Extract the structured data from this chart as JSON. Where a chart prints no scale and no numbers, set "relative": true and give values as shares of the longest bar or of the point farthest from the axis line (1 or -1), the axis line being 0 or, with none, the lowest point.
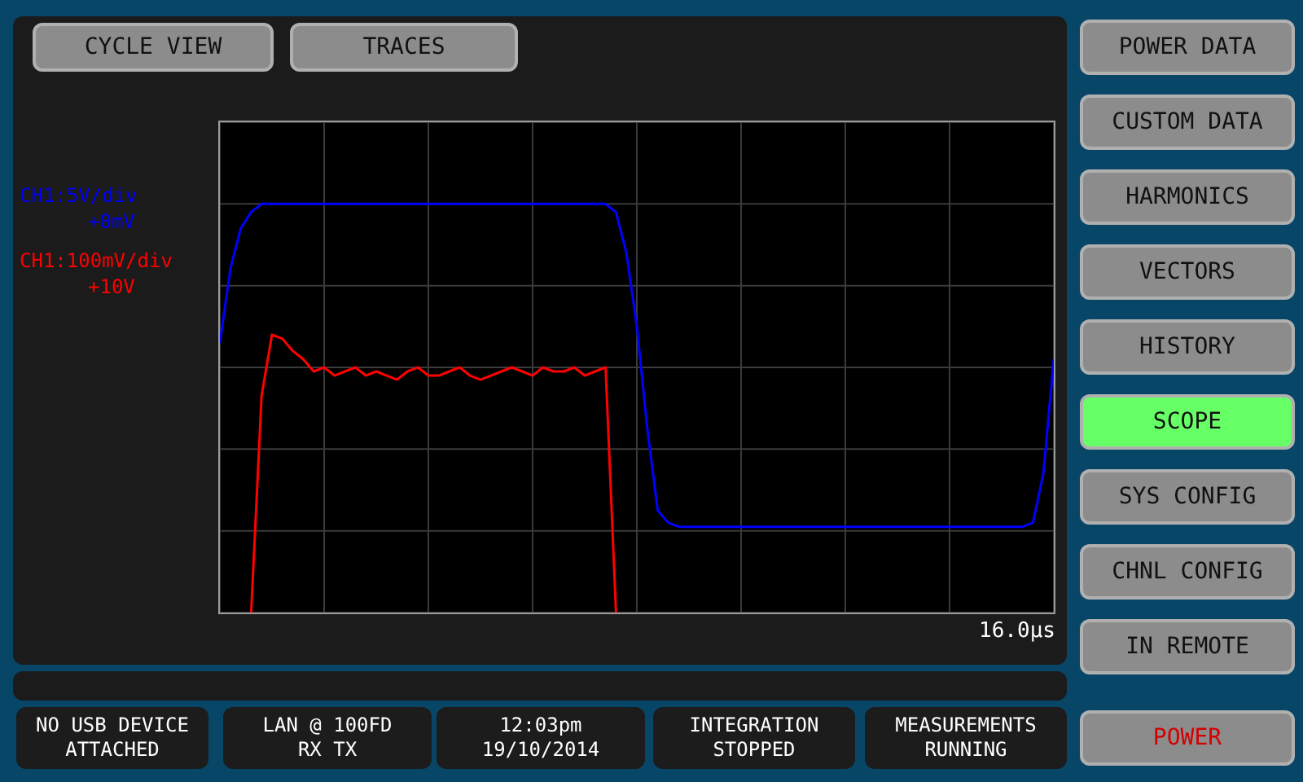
{
  "chart_data": {
    "type": "line",
    "relative": true,
    "grid": true,
    "marker": "none",
    "line_style": "solid",
    "categories": [
      null,
      null,
      null,
      null,
      null,
      null,
      null,
      null,
      null,
      null,
      null,
      null,
      null,
      null,
      null,
      null,
      null,
      null,
      null,
      null,
      null,
      null,
      null,
      null,
      null,
      null,
      null,
      null,
      null,
      null,
      null,
      null,
      null,
      null,
      null,
      null,
      null,
      null,
      null,
      null,
      null,
      null,
      null,
      null,
      null,
      null,
      null,
      null,
      null,
      null,
      null,
      null,
      null,
      null,
      null,
      null,
      null,
      null,
      null,
      null,
      null,
      null,
      null,
      null,
      null,
      null,
      null,
      null,
      null,
      null,
      null,
      null,
      null,
      null,
      null,
      null,
      null,
      null,
      null,
      null,
      null
    ],
    "series": [
      {
        "name": "CH1:5V/div +0mV",
        "color": "#0000ff",
        "values": [
          0.66,
          0.84,
          0.94,
          0.98,
          1,
          1,
          1,
          1,
          1,
          1,
          1,
          1,
          1,
          1,
          1,
          1,
          1,
          1,
          1,
          1,
          1,
          1,
          1,
          1,
          1,
          1,
          1,
          1,
          1,
          1,
          1,
          1,
          1,
          1,
          1,
          1,
          1,
          1,
          0.98,
          0.88,
          0.7,
          0.45,
          0.25,
          0.22,
          0.21,
          0.21,
          0.21,
          0.21,
          0.21,
          0.21,
          0.21,
          0.21,
          0.21,
          0.21,
          0.21,
          0.21,
          0.21,
          0.21,
          0.21,
          0.21,
          0.21,
          0.21,
          0.21,
          0.21,
          0.21,
          0.21,
          0.21,
          0.21,
          0.21,
          0.21,
          0.21,
          0.21,
          0.21,
          0.21,
          0.21,
          0.21,
          0.21,
          0.21,
          0.22,
          0.34,
          0.62
        ]
      },
      {
        "name": "CH1:100mV/div +10V",
        "color": "#ff0000",
        "values": [
          null,
          null,
          null,
          0,
          0.53,
          0.68,
          0.67,
          0.64,
          0.62,
          0.59,
          0.6,
          0.58,
          0.59,
          0.6,
          0.58,
          0.59,
          0.58,
          0.57,
          0.59,
          0.6,
          0.58,
          0.58,
          0.59,
          0.6,
          0.58,
          0.57,
          0.58,
          0.59,
          0.6,
          0.59,
          0.58,
          0.6,
          0.59,
          0.59,
          0.6,
          0.58,
          0.59,
          0.6,
          0,
          null,
          null,
          null,
          null,
          null,
          null,
          null,
          null,
          null,
          null,
          null,
          null,
          null,
          null,
          null,
          null,
          null,
          null,
          null,
          null,
          null,
          null,
          null,
          null,
          null,
          null,
          null,
          null,
          null,
          null,
          null,
          null,
          null,
          null,
          null,
          null,
          null,
          null,
          null,
          null,
          null,
          null
        ]
      }
    ],
    "annotations": [
      "CYCLE VIEW",
      "TRACES",
      "POWER DATA",
      "CUSTOM DATA",
      "HARMONICS",
      "VECTORS",
      "HISTORY",
      "SCOPE",
      "SYS CONFIG",
      "CHNL CONFIG",
      "IN REMOTE",
      "POWER",
      "NO USB DEVICE\nATTACHED",
      "LAN @ 100FD\nRX TX",
      "12:03pm\n19/10/2014",
      "INTEGRATION\nSTOPPED",
      "MEASUREMENTS\nRUNNING",
      "16.0µs"
    ]
  }
}
